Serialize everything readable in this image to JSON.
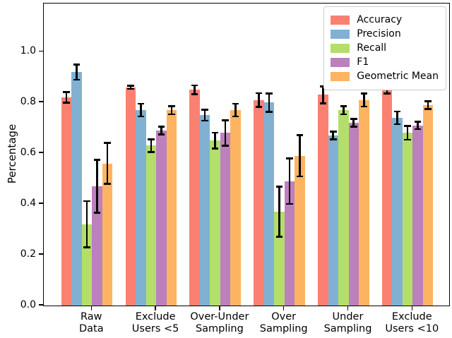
{
  "chart_data": {
    "type": "bar",
    "title": "",
    "xlabel": "",
    "ylabel": "Percentage",
    "ylim": [
      0,
      1.19
    ],
    "yticks": [
      "0.0",
      "0.2",
      "0.4",
      "0.6",
      "0.8",
      "1.0"
    ],
    "grid": false,
    "legend_position": "upper right",
    "error_bar_color": "#000000",
    "categories": [
      [
        "Raw",
        "Data"
      ],
      [
        "Exclude",
        "Users <5"
      ],
      [
        "Over-Under",
        "Sampling"
      ],
      [
        "Over",
        "Sampling"
      ],
      [
        "Under",
        "Sampling"
      ],
      [
        "Exclude",
        "Users <10"
      ]
    ],
    "series": [
      {
        "name": "Accuracy",
        "color": "#fb8072",
        "values": [
          0.82,
          0.86,
          0.85,
          0.81,
          0.83,
          0.85
        ],
        "errors": [
          0.021,
          0.006,
          0.017,
          0.027,
          0.034,
          0.015
        ]
      },
      {
        "name": "Precision",
        "color": "#80b1d3",
        "values": [
          0.92,
          0.77,
          0.75,
          0.8,
          0.67,
          0.74
        ],
        "errors": [
          0.03,
          0.025,
          0.021,
          0.036,
          0.016,
          0.025
        ]
      },
      {
        "name": "Recall",
        "color": "#b3de69",
        "values": [
          0.32,
          0.63,
          0.65,
          0.37,
          0.77,
          0.68
        ],
        "errors": [
          0.091,
          0.025,
          0.031,
          0.099,
          0.016,
          0.027
        ]
      },
      {
        "name": "F1",
        "color": "#bc80bd",
        "values": [
          0.47,
          0.69,
          0.68,
          0.49,
          0.72,
          0.71
        ],
        "errors": [
          0.104,
          0.015,
          0.05,
          0.09,
          0.015,
          0.015
        ]
      },
      {
        "name": "Geometric Mean",
        "color": "#fdb462",
        "values": [
          0.56,
          0.77,
          0.77,
          0.59,
          0.81,
          0.79
        ],
        "errors": [
          0.081,
          0.016,
          0.025,
          0.081,
          0.026,
          0.015
        ]
      }
    ]
  }
}
